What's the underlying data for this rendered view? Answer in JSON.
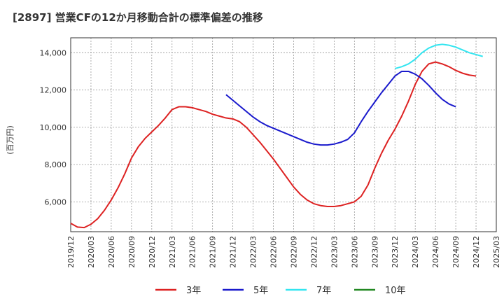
{
  "chart_data": {
    "type": "line",
    "title": "[2897]  営業CFの12か月移動合計の標準偏差の推移",
    "ylabel": "(百万円)",
    "xlabel": "",
    "ylim": [
      4400,
      14800
    ],
    "yticks": [
      6000,
      8000,
      10000,
      12000,
      14000
    ],
    "ytick_labels": [
      "6,000",
      "8,000",
      "10,000",
      "12,000",
      "14,000"
    ],
    "x_ticks": [
      "2019/12",
      "2020/03",
      "2020/06",
      "2020/09",
      "2020/12",
      "2021/03",
      "2021/06",
      "2021/09",
      "2021/12",
      "2022/03",
      "2022/06",
      "2022/09",
      "2022/12",
      "2023/03",
      "2023/06",
      "2023/09",
      "2023/12",
      "2024/03",
      "2024/06",
      "2024/09",
      "2024/12",
      "2025/03"
    ],
    "grid": true,
    "legend_position": "bottom",
    "series": [
      {
        "name": "3年",
        "color": "#dd2222",
        "start": "2019/12",
        "values": [
          4850,
          4650,
          4620,
          4800,
          5100,
          5550,
          6100,
          6750,
          7500,
          8350,
          8950,
          9400,
          9750,
          10100,
          10500,
          10950,
          11100,
          11100,
          11050,
          10950,
          10850,
          10700,
          10600,
          10500,
          10450,
          10300,
          10000,
          9600,
          9200,
          8750,
          8300,
          7800,
          7300,
          6800,
          6400,
          6100,
          5900,
          5800,
          5750,
          5750,
          5800,
          5900,
          6000,
          6300,
          6900,
          7800,
          8600,
          9300,
          9900,
          10600,
          11400,
          12300,
          13000,
          13400,
          13500,
          13400,
          13250,
          13050,
          12900,
          12800,
          12750
        ]
      },
      {
        "name": "5年",
        "color": "#1a1acc",
        "start": "2021/11",
        "values": [
          11750,
          11450,
          11150,
          10850,
          10550,
          10300,
          10100,
          9950,
          9800,
          9650,
          9500,
          9350,
          9200,
          9100,
          9050,
          9050,
          9100,
          9200,
          9350,
          9700,
          10300,
          10850,
          11350,
          11850,
          12300,
          12750,
          13000,
          13000,
          12850,
          12600,
          12250,
          11850,
          11500,
          11250,
          11100
        ]
      },
      {
        "name": "7年",
        "color": "#33e5f0",
        "start": "2023/12",
        "values": [
          13150,
          13250,
          13400,
          13650,
          14000,
          14250,
          14400,
          14450,
          14400,
          14300,
          14150,
          14000,
          13900,
          13800
        ]
      },
      {
        "name": "10年",
        "color": "#228822",
        "start": "",
        "values": []
      }
    ]
  }
}
